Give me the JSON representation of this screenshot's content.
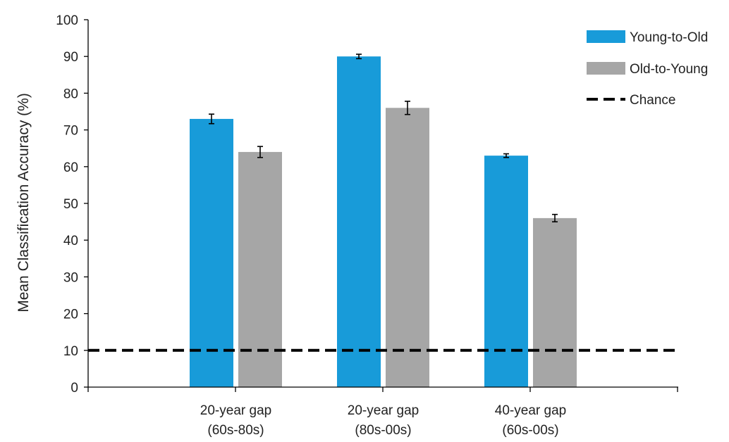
{
  "chart_data": {
    "type": "bar",
    "title": "",
    "xlabel": "",
    "ylabel": "Mean Classification Accuracy (%)",
    "ylim": [
      0,
      100
    ],
    "yticks": [
      0,
      10,
      20,
      30,
      40,
      50,
      60,
      70,
      80,
      90,
      100
    ],
    "categories": [
      [
        "20-year gap",
        "(60s-80s)"
      ],
      [
        "20-year gap",
        "(80s-00s)"
      ],
      [
        "40-year gap",
        "(60s-00s)"
      ]
    ],
    "series": [
      {
        "name": "Young-to-Old",
        "color": "#189bd9",
        "values": [
          73,
          90,
          63
        ],
        "errors": [
          1.3,
          0.6,
          0.5
        ]
      },
      {
        "name": "Old-to-Young",
        "color": "#a6a6a6",
        "values": [
          64,
          76,
          46
        ],
        "errors": [
          1.5,
          1.8,
          1.0
        ]
      }
    ],
    "reference_line": {
      "name": "Chance",
      "value": 10,
      "style": "dashed",
      "color": "#000000"
    },
    "legend_position": "top-right",
    "grid": false
  }
}
